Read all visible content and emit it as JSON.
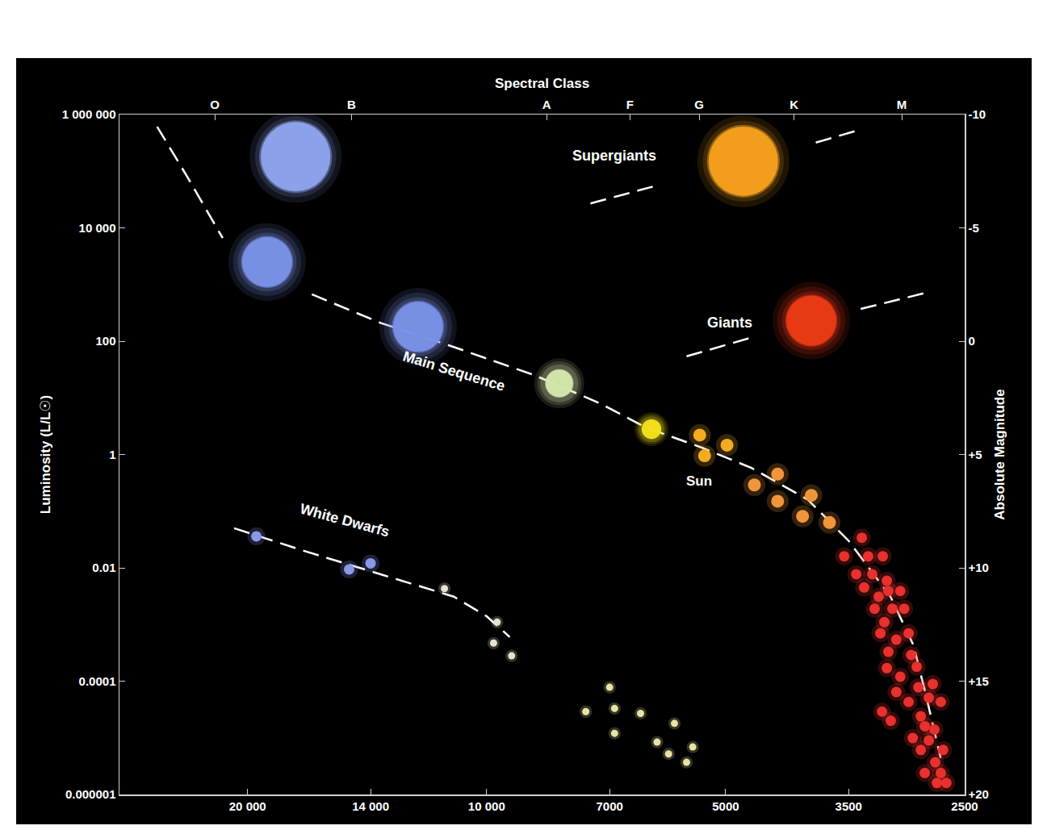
{
  "chart_data": {
    "type": "scatter",
    "x2_label": "Spectral Class",
    "y_label": "Luminosity (L/L☉)",
    "y2_label": "Absolute Magnitude",
    "log": true,
    "grid": false,
    "tick_labels": true,
    "xlim": [
      29000,
      2500
    ],
    "xticks": [
      {
        "value": 20000,
        "label": "20 000"
      },
      {
        "value": 14000,
        "label": "14 000"
      },
      {
        "value": 10000,
        "label": "10 000"
      },
      7000,
      5000,
      3500,
      2500
    ],
    "x2ticks": [
      {
        "value": 22000,
        "label": "O"
      },
      {
        "value": 14800,
        "label": "B"
      },
      {
        "value": 8400,
        "label": "A"
      },
      {
        "value": 6600,
        "label": "F"
      },
      {
        "value": 5400,
        "label": "G"
      },
      {
        "value": 4100,
        "label": "K"
      },
      {
        "value": 3000,
        "label": "M"
      }
    ],
    "ylim": [
      1e-06,
      1000000
    ],
    "yticks": [
      {
        "value": 1000000,
        "label": "1 000 000"
      },
      {
        "value": 10000,
        "label": "10 000"
      },
      100,
      1,
      0.01,
      0.0001,
      1e-06
    ],
    "y2lim": [
      20,
      -10
    ],
    "y2ticks": [
      -10,
      -5,
      0,
      {
        "value": 5,
        "label": "+5"
      },
      {
        "value": 10,
        "label": "+10"
      },
      {
        "value": 15,
        "label": "+15"
      },
      {
        "value": 20,
        "label": "+20"
      }
    ],
    "annotations": [
      {
        "text": "Supergiants",
        "x": 6900,
        "y": 190000
      },
      {
        "text": "Giants",
        "x": 4940,
        "y": 212
      },
      {
        "text": "Main Sequence",
        "x": 11000,
        "y": 30
      },
      {
        "text": "White Dwarfs",
        "x": 15100,
        "y": 0.069
      },
      {
        "text": "Sun",
        "x": 5400,
        "y": 0.34
      }
    ],
    "series": [
      {
        "type": "line",
        "line_style": "dashed",
        "color": "#ffffff",
        "x": [
          26000,
          23800,
          21500,
          null,
          16600,
          13600,
          11000,
          8700,
          7200,
          6300,
          5340,
          4640,
          3940,
          3500,
          3100,
          2900,
          2800,
          2680
        ],
        "values": [
          610000,
          78000,
          6600,
          null,
          670,
          210,
          79,
          25,
          8,
          3,
          1.3,
          0.58,
          0.16,
          0.03,
          0.0031,
          0.00043,
          6e-05,
          4.4e-06
        ]
      },
      {
        "type": "line",
        "line_style": "dashed",
        "color": "#ffffff",
        "x": [
          20800,
          16800,
          13600,
          11000,
          10000,
          9350
        ],
        "values": [
          0.05,
          0.019,
          0.0077,
          0.0031,
          0.0014,
          0.0006
        ]
      },
      {
        "type": "line",
        "line_style": "dashed",
        "color": "#ffffff",
        "x": [
          7400,
          6100,
          null,
          3850,
          3370
        ],
        "values": [
          27000,
          56000,
          null,
          320000,
          550000
        ]
      },
      {
        "type": "line",
        "line_style": "dashed",
        "color": "#ffffff",
        "x": [
          5600,
          4600,
          null,
          3380,
          2770
        ],
        "values": [
          54,
          120,
          null,
          370,
          740
        ]
      },
      {
        "type": "scatter",
        "marker": "glow-xl",
        "x": [
          17400,
          4750
        ],
        "values": [
          180000,
          150000
        ],
        "colors": [
          "#8da4ee",
          "#f5a11c"
        ]
      },
      {
        "type": "scatter",
        "marker": "glow-l",
        "x": [
          18900,
          12200,
          3900
        ],
        "values": [
          2500,
          180,
          230
        ],
        "colors": [
          "#7a92e8",
          "#7a92e8",
          "#ec3a16"
        ]
      },
      {
        "type": "scatter",
        "marker": "glow-m",
        "color": "#d4e8ad",
        "x": [
          8100
        ],
        "values": [
          18
        ]
      },
      {
        "type": "scatter",
        "marker": "glow-s",
        "color": "#f2e21a",
        "x": [
          6200
        ],
        "values": [
          2.8
        ]
      },
      {
        "type": "scatter",
        "marker": "dot-l",
        "color": "#f4ac1e",
        "x": [
          5390,
          4980,
          5315
        ],
        "values": [
          2.2,
          1.46,
          0.95
        ]
      },
      {
        "type": "scatter",
        "marker": "dot-l",
        "color": "#f0963a",
        "x": [
          4600,
          4300,
          4300,
          4000,
          3900,
          3700
        ],
        "values": [
          0.29,
          0.45,
          0.15,
          0.081,
          0.19,
          0.063
        ]
      },
      {
        "type": "scatter",
        "marker": "dot-m",
        "color": "#e8302e",
        "x": [
          3545,
          3369,
          3307,
          3170,
          3424,
          3268,
          3133,
          3346,
          3119,
          3013,
          3208,
          3246,
          3083,
          2979,
          3155,
          3192,
          3048,
          2941,
          3119,
          2920,
          3133,
          3013,
          2873,
          3048,
          2859,
          2742,
          2774,
          2941,
          2839,
          2679,
          3177,
          3097,
          2806,
          2729,
          2906,
          2774,
          2661,
          2839,
          2723,
          2806,
          2679,
          2636,
          2710
        ],
        "values": [
          0.016,
          0.034,
          0.016,
          0.016,
          0.0077,
          0.0077,
          0.0059,
          0.0045,
          0.0039,
          0.0039,
          0.0031,
          0.0019,
          0.0019,
          0.0019,
          0.0011,
          0.0007,
          0.00054,
          0.0007,
          0.00033,
          0.00029,
          0.00017,
          0.00012,
          0.00018,
          6.4e-05,
          7.8e-05,
          8.9e-05,
          5.1e-05,
          4.3e-05,
          2.4e-05,
          4.3e-05,
          2.9e-05,
          2e-05,
          1.6e-05,
          1.4e-05,
          9.9e-06,
          9e-06,
          6.1e-06,
          6.1e-06,
          3.7e-06,
          2.4e-06,
          2.4e-06,
          1.6e-06,
          1.6e-06
        ]
      },
      {
        "type": "scatter",
        "marker": "dot-m",
        "color": "#8a98e6",
        "x": [
          19500,
          14900,
          14000
        ],
        "values": [
          0.036,
          0.0094,
          0.012
        ]
      },
      {
        "type": "scatter",
        "marker": "dot-s",
        "color": "#e6e2cf",
        "x": [
          11300,
          9700,
          9800,
          9300
        ],
        "values": [
          0.0043,
          0.0011,
          0.00047,
          0.00028
        ]
      },
      {
        "type": "scatter",
        "marker": "dot-s",
        "color": "#e8e2a6",
        "x": [
          7000,
          7500,
          6900,
          6900,
          6400,
          5800,
          6100,
          5900,
          5500,
          5600
        ],
        "values": [
          7.8e-05,
          2.9e-05,
          3.3e-05,
          1.2e-05,
          2.7e-05,
          1.8e-05,
          8.4e-06,
          5.2e-06,
          6.9e-06,
          3.7e-06
        ]
      }
    ]
  }
}
